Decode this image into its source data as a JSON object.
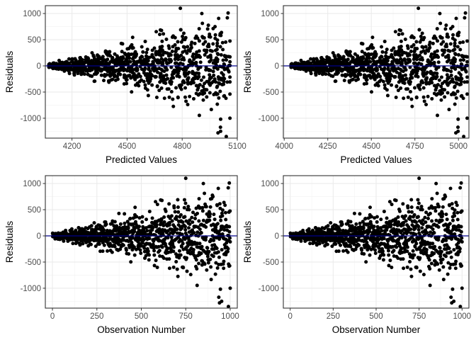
{
  "chart_data": [
    {
      "type": "scatter",
      "xlabel": "Predicted Values",
      "ylabel": "Residuals",
      "xlim": [
        4055,
        5100
      ],
      "ylim": [
        -1380,
        1150
      ],
      "x_ticks": [
        4200,
        4500,
        4800,
        5100
      ],
      "y_ticks": [
        -1000,
        -500,
        0,
        500,
        1000
      ],
      "reference_line": {
        "y": 0,
        "color": "#00008b"
      },
      "grid": true,
      "point_color": "#000000",
      "n_points": 1000,
      "x_range_data": [
        4075,
        5060
      ],
      "notable_points": [
        [
          4790,
          1100
        ],
        [
          5050,
          1010
        ],
        [
          4995,
          -1280
        ],
        [
          5040,
          -1350
        ],
        [
          5060,
          -1000
        ]
      ]
    },
    {
      "type": "scatter",
      "xlabel": "Predicted Values",
      "ylabel": "Residuals",
      "xlim": [
        3995,
        5060
      ],
      "ylim": [
        -1380,
        1150
      ],
      "x_ticks": [
        4000,
        4250,
        4500,
        4750,
        5000
      ],
      "y_ticks": [
        -1000,
        -500,
        0,
        500,
        1000
      ],
      "reference_line": {
        "y": 0,
        "color": "#00008b"
      },
      "grid": true,
      "point_color": "#000000",
      "n_points": 1000,
      "x_range_data": [
        4040,
        5050
      ],
      "notable_points": [
        [
          4770,
          1100
        ],
        [
          5040,
          1010
        ],
        [
          4985,
          -1280
        ],
        [
          5030,
          -1350
        ],
        [
          5050,
          -1000
        ]
      ]
    },
    {
      "type": "scatter",
      "xlabel": "Observation Number",
      "ylabel": "Residuals",
      "xlim": [
        -40,
        1040
      ],
      "ylim": [
        -1380,
        1150
      ],
      "x_ticks": [
        0,
        250,
        500,
        750,
        1000
      ],
      "y_ticks": [
        -1000,
        -500,
        0,
        500,
        1000
      ],
      "reference_line": {
        "y": 0,
        "color": "#00008b"
      },
      "grid": true,
      "point_color": "#000000",
      "n_points": 1000,
      "x_range_data": [
        1,
        1000
      ],
      "notable_points": [
        [
          750,
          1100
        ],
        [
          995,
          1010
        ],
        [
          940,
          -1280
        ],
        [
          990,
          -1350
        ],
        [
          1000,
          -1000
        ]
      ]
    },
    {
      "type": "scatter",
      "xlabel": "Observation Number",
      "ylabel": "Residuals",
      "xlim": [
        -40,
        1040
      ],
      "ylim": [
        -1380,
        1150
      ],
      "x_ticks": [
        0,
        250,
        500,
        750,
        1000
      ],
      "y_ticks": [
        -1000,
        -500,
        0,
        500,
        1000
      ],
      "reference_line": {
        "y": 0,
        "color": "#00008b"
      },
      "grid": true,
      "point_color": "#000000",
      "n_points": 1000,
      "x_range_data": [
        1,
        1000
      ],
      "notable_points": [
        [
          750,
          1100
        ],
        [
          995,
          1010
        ],
        [
          940,
          -1280
        ],
        [
          990,
          -1350
        ],
        [
          1000,
          -1000
        ]
      ]
    }
  ]
}
